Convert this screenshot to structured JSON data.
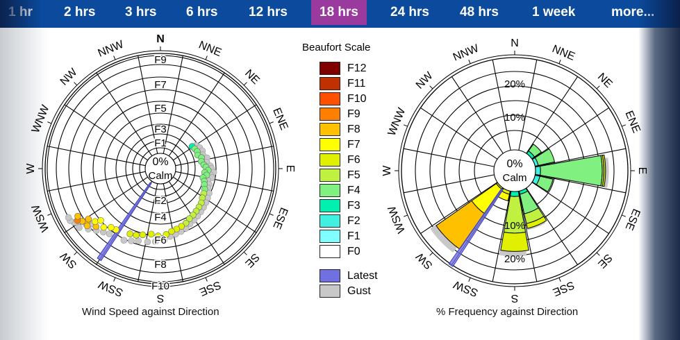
{
  "nav": {
    "tabs": [
      "1 hr",
      "2 hrs",
      "3 hrs",
      "6 hrs",
      "12 hrs",
      "18 hrs",
      "24 hrs",
      "48 hrs",
      "1 week",
      "more..."
    ],
    "selected": "18 hrs",
    "selected_color": "#9a3a9e",
    "bar_color": "#0b4a9c"
  },
  "legend": {
    "title": "Beaufort Scale",
    "items": [
      {
        "label": "F12",
        "color": "#800000"
      },
      {
        "label": "F11",
        "color": "#c03000"
      },
      {
        "label": "F10",
        "color": "#ff5000"
      },
      {
        "label": "F9",
        "color": "#ff8000"
      },
      {
        "label": "F8",
        "color": "#ffc000"
      },
      {
        "label": "F7",
        "color": "#ffff00"
      },
      {
        "label": "F6",
        "color": "#e0f000"
      },
      {
        "label": "F5",
        "color": "#c0f040"
      },
      {
        "label": "F4",
        "color": "#80f080"
      },
      {
        "label": "F3",
        "color": "#00f0b0"
      },
      {
        "label": "F2",
        "color": "#40f0e0"
      },
      {
        "label": "F1",
        "color": "#80ffff"
      },
      {
        "label": "F0",
        "color": "#ffffff"
      }
    ],
    "latest": {
      "label": "Latest",
      "color": "#7070e0"
    },
    "gust": {
      "label": "Gust",
      "color": "#c8c8c8"
    }
  },
  "chart_data": [
    {
      "type": "scatter",
      "title": "Wind Speed against Direction",
      "center_label": [
        "0%",
        "Calm"
      ],
      "directions": [
        "N",
        "NNE",
        "NE",
        "ENE",
        "E",
        "ESE",
        "SE",
        "SSE",
        "S",
        "SSW",
        "SW",
        "WSW",
        "W",
        "WNW",
        "NW",
        "NNW"
      ],
      "radial_ticks": [
        "F1",
        "F2",
        "F3",
        "F4",
        "F5",
        "F6",
        "F7",
        "F8",
        "F9",
        "F10"
      ],
      "latest": {
        "direction_deg": 214,
        "force": 9.6
      },
      "points_fields": [
        "direction_deg",
        "force",
        "gust_force"
      ],
      "points": [
        [
          55,
          3.4,
          3.8
        ],
        [
          60,
          3.5,
          4
        ],
        [
          65,
          3.6,
          4.1
        ],
        [
          70,
          3.5,
          4
        ],
        [
          75,
          3.8,
          4.3
        ],
        [
          80,
          3.7,
          4.2
        ],
        [
          85,
          3.9,
          4.5
        ],
        [
          88,
          4.1,
          4.6
        ],
        [
          92,
          4.3,
          4.8
        ],
        [
          95,
          4,
          4.5
        ],
        [
          98,
          4.2,
          4.7
        ],
        [
          102,
          3.9,
          4.4
        ],
        [
          106,
          4.1,
          4.6
        ],
        [
          110,
          4.2,
          4.6
        ],
        [
          115,
          4.4,
          4.9
        ],
        [
          120,
          4.5,
          5
        ],
        [
          125,
          4.6,
          5.1
        ],
        [
          130,
          4.8,
          5.2
        ],
        [
          135,
          4.9,
          5.3
        ],
        [
          140,
          5,
          5.4
        ],
        [
          145,
          5.1,
          5.5
        ],
        [
          150,
          5.2,
          5.6
        ],
        [
          155,
          5.4,
          5.8
        ],
        [
          160,
          5.5,
          5.9
        ],
        [
          165,
          5.6,
          6
        ],
        [
          170,
          5.7,
          6.1
        ],
        [
          175,
          5.9,
          6.4
        ],
        [
          182,
          6,
          6.5
        ],
        [
          188,
          5.9,
          6.6
        ],
        [
          195,
          6.1,
          6.7
        ],
        [
          200,
          6.3,
          6.9
        ],
        [
          205,
          6.4,
          7.1
        ],
        [
          216,
          6.7,
          7.3
        ],
        [
          220,
          6.8,
          7.5
        ],
        [
          224,
          7.2,
          7.8
        ],
        [
          228,
          7.6,
          8.2
        ],
        [
          231,
          7.4,
          8.1
        ],
        [
          234,
          7.9,
          8.6
        ],
        [
          236,
          8.2,
          8.8
        ],
        [
          238,
          8.5,
          9
        ],
        [
          232,
          8.1,
          8.7
        ],
        [
          229,
          7.0,
          7.7
        ],
        [
          235,
          7.7,
          8.4
        ],
        [
          240,
          8.3,
          9
        ]
      ]
    },
    {
      "type": "stacked-polar-bar",
      "title": "% Frequency against Direction",
      "center_label": [
        "0%",
        "Calm"
      ],
      "directions": [
        "N",
        "NNE",
        "NE",
        "ENE",
        "E",
        "ESE",
        "SE",
        "SSE",
        "S",
        "SSW",
        "SW",
        "WSW",
        "W",
        "WNW",
        "NW",
        "NNW"
      ],
      "radial_ticks": [
        "10%",
        "20%"
      ],
      "units": "%",
      "bars": [
        {
          "direction": "NE",
          "bands": [
            {
              "force": "F3",
              "pct": 1
            },
            {
              "force": "F4",
              "pct": 2.5
            }
          ],
          "gust_pct": 0
        },
        {
          "direction": "ENE",
          "bands": [
            {
              "force": "F2",
              "pct": 1
            },
            {
              "force": "F4",
              "pct": 5
            }
          ],
          "gust_pct": 0
        },
        {
          "direction": "E",
          "bands": [
            {
              "force": "F2",
              "pct": 1.5
            },
            {
              "force": "F4",
              "pct": 18.5
            },
            {
              "force": "F5",
              "pct": 0.5
            },
            {
              "force": "F6",
              "pct": 0.5
            }
          ],
          "gust_pct": 1
        },
        {
          "direction": "ESE",
          "bands": [
            {
              "force": "F2",
              "pct": 1.5
            },
            {
              "force": "F4",
              "pct": 4
            }
          ],
          "gust_pct": 0
        },
        {
          "direction": "SSE",
          "bands": [
            {
              "force": "F3",
              "pct": 1
            },
            {
              "force": "F4",
              "pct": 6
            },
            {
              "force": "F5",
              "pct": 3
            },
            {
              "force": "F6",
              "pct": 1.5
            }
          ],
          "gust_pct": 0.5
        },
        {
          "direction": "S",
          "bands": [
            {
              "force": "F3",
              "pct": 1.5
            },
            {
              "force": "F5",
              "pct": 11
            },
            {
              "force": "F6",
              "pct": 5.5
            }
          ],
          "gust_pct": 1.5
        },
        {
          "direction": "SSW",
          "bands": [
            {
              "force": "F6",
              "pct": 1
            },
            {
              "force": "F7",
              "pct": 2
            }
          ],
          "gust_pct": 0
        },
        {
          "direction": "SW",
          "bands": [
            {
              "force": "F6",
              "pct": 0.5
            },
            {
              "force": "F7",
              "pct": 9
            },
            {
              "force": "F8",
              "pct": 13
            }
          ],
          "gust_pct": 2
        }
      ],
      "latest": {
        "direction_deg": 214,
        "pct": 28
      }
    }
  ]
}
